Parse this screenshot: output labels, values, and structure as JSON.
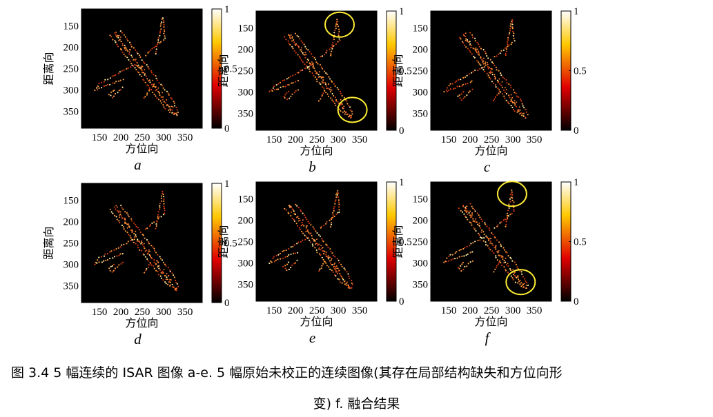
{
  "figure": {
    "caption_line1": "图 3.4 5 幅连续的 ISAR 图像  a-e. 5 幅原始未校正的连续图像(其存在局部结构缺失和方位向形",
    "caption_line2": "变) f.  融合结果"
  },
  "chart_data": [
    {
      "type": "heatmap",
      "panel_label": "a",
      "xlabel": "方位向",
      "ylabel": "距离向",
      "xticks": [
        "150",
        "200",
        "250",
        "300",
        "350"
      ],
      "yticks": [
        "150",
        "200",
        "250",
        "300",
        "350"
      ],
      "colorbar_ticks": [
        "0",
        "0.5",
        "1"
      ],
      "colorbar_range": [
        0,
        1
      ],
      "colormap": "hot",
      "circled_regions": []
    },
    {
      "type": "heatmap",
      "panel_label": "b",
      "xlabel": "方位向",
      "ylabel": "距离向",
      "xticks": [
        "150",
        "200",
        "250",
        "300",
        "350"
      ],
      "yticks": [
        "150",
        "200",
        "250",
        "300",
        "350"
      ],
      "colorbar_ticks": [
        "0",
        "0.5",
        "1"
      ],
      "colorbar_range": [
        0,
        1
      ],
      "colormap": "hot",
      "circled_regions": [
        {
          "x": 303,
          "y": 142
        },
        {
          "x": 333,
          "y": 342
        }
      ]
    },
    {
      "type": "heatmap",
      "panel_label": "c",
      "xlabel": "方位向",
      "ylabel": "距离向",
      "xticks": [
        "150",
        "200",
        "250",
        "300",
        "350"
      ],
      "yticks": [
        "150",
        "200",
        "250",
        "300",
        "350"
      ],
      "colorbar_ticks": [
        "0",
        "0.5",
        "1"
      ],
      "colorbar_range": [
        0,
        1
      ],
      "colormap": "hot",
      "circled_regions": []
    },
    {
      "type": "heatmap",
      "panel_label": "d",
      "xlabel": "方位向",
      "ylabel": "距离向",
      "xticks": [
        "150",
        "200",
        "250",
        "300",
        "350"
      ],
      "yticks": [
        "150",
        "200",
        "250",
        "300",
        "350"
      ],
      "colorbar_ticks": [
        "0",
        "0.5",
        "1"
      ],
      "colorbar_range": [
        0,
        1
      ],
      "colormap": "hot",
      "circled_regions": []
    },
    {
      "type": "heatmap",
      "panel_label": "e",
      "xlabel": "方位向",
      "ylabel": "距离向",
      "xticks": [
        "150",
        "200",
        "250",
        "300",
        "350"
      ],
      "yticks": [
        "150",
        "200",
        "250",
        "300",
        "350"
      ],
      "colorbar_ticks": [
        "0",
        "0.5",
        "1"
      ],
      "colorbar_range": [
        0,
        1
      ],
      "colormap": "hot",
      "circled_regions": []
    },
    {
      "type": "heatmap",
      "panel_label": "f",
      "xlabel": "方位向",
      "ylabel": "距离向",
      "xticks": [
        "150",
        "200",
        "250",
        "300",
        "350"
      ],
      "yticks": [
        "150",
        "200",
        "250",
        "300",
        "350"
      ],
      "colorbar_ticks": [
        "0",
        "0.5",
        "1"
      ],
      "colorbar_range": [
        0,
        1
      ],
      "colormap": "hot",
      "circled_regions": [
        {
          "x": 298,
          "y": 138
        },
        {
          "x": 318,
          "y": 345
        }
      ]
    }
  ],
  "colors": {
    "highlight_circle": "#ffee33",
    "image_background": "#000000"
  }
}
